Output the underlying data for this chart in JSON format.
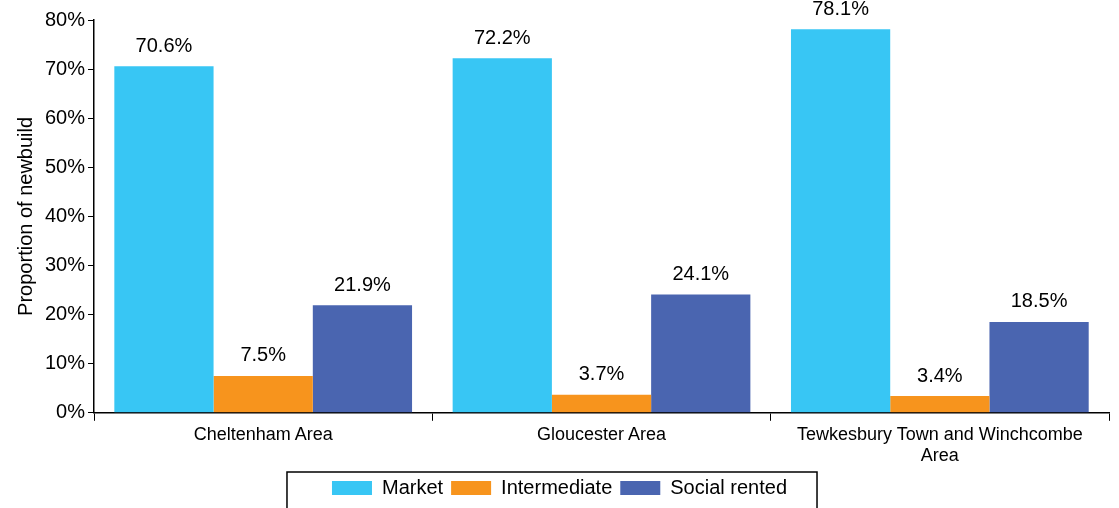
{
  "chart_data": {
    "type": "bar",
    "ylabel": "Proportion of newbuild",
    "categories": [
      "Cheltenham Area",
      "Gloucester Area",
      "Tewkesbury Town and Winchcombe Area"
    ],
    "series": [
      {
        "name": "Market",
        "color": "#38c6f4",
        "values": [
          70.6,
          72.2,
          78.1
        ],
        "value_labels": [
          "70.6%",
          "72.2%",
          "78.1%"
        ]
      },
      {
        "name": "Intermediate",
        "color": "#f7941d",
        "values": [
          7.5,
          3.7,
          3.4
        ],
        "value_labels": [
          "7.5%",
          "3.7%",
          "3.4%"
        ]
      },
      {
        "name": "Social rented",
        "color": "#4a65b0",
        "values": [
          21.9,
          24.1,
          18.5
        ],
        "value_labels": [
          "21.9%",
          "24.1%",
          "18.5%"
        ]
      }
    ],
    "ylim": [
      0,
      80
    ],
    "yticks": [
      {
        "value": 0,
        "label": "0%"
      },
      {
        "value": 10,
        "label": "10%"
      },
      {
        "value": 20,
        "label": "20%"
      },
      {
        "value": 30,
        "label": "30%"
      },
      {
        "value": 40,
        "label": "40%"
      },
      {
        "value": 50,
        "label": "50%"
      },
      {
        "value": 60,
        "label": "60%"
      },
      {
        "value": 70,
        "label": "70%"
      },
      {
        "value": 80,
        "label": "80%"
      }
    ],
    "grid": false,
    "legend": "bottom"
  }
}
